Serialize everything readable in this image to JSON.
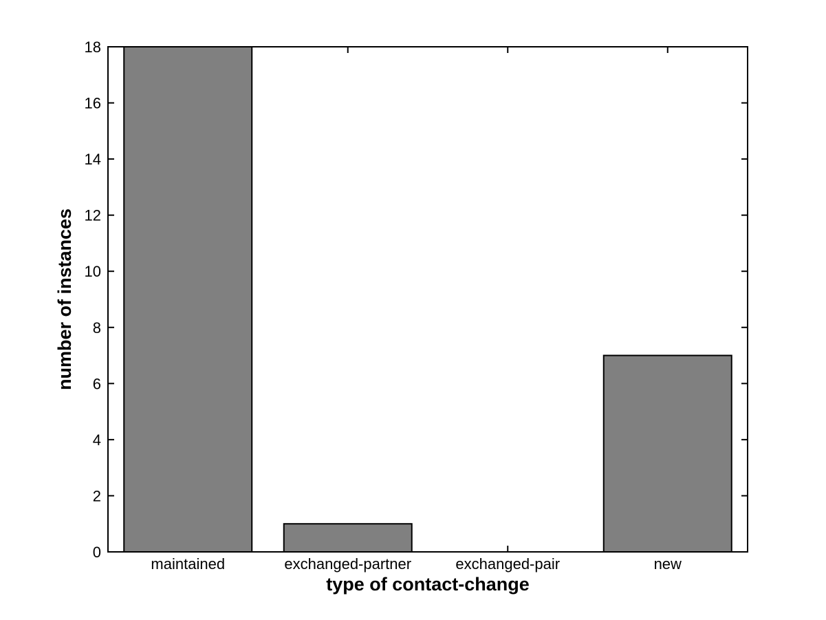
{
  "figure": {
    "background": "#ffffff"
  },
  "chart_data": {
    "type": "bar",
    "categories": [
      "maintained",
      "exchanged-partner",
      "exchanged-pair",
      "new"
    ],
    "values": [
      18,
      1,
      0,
      7
    ],
    "title": "",
    "xlabel": "type of contact-change",
    "ylabel": "number of instances",
    "ylim": [
      0,
      18
    ],
    "yticks": [
      0,
      2,
      4,
      6,
      8,
      10,
      12,
      14,
      16,
      18
    ],
    "bar_width_fraction": 0.8,
    "grid": false,
    "legend": "none",
    "bar_fill": "#808080",
    "bar_edge": "#000000",
    "axis_color": "#000000",
    "text_color": "#000000"
  }
}
